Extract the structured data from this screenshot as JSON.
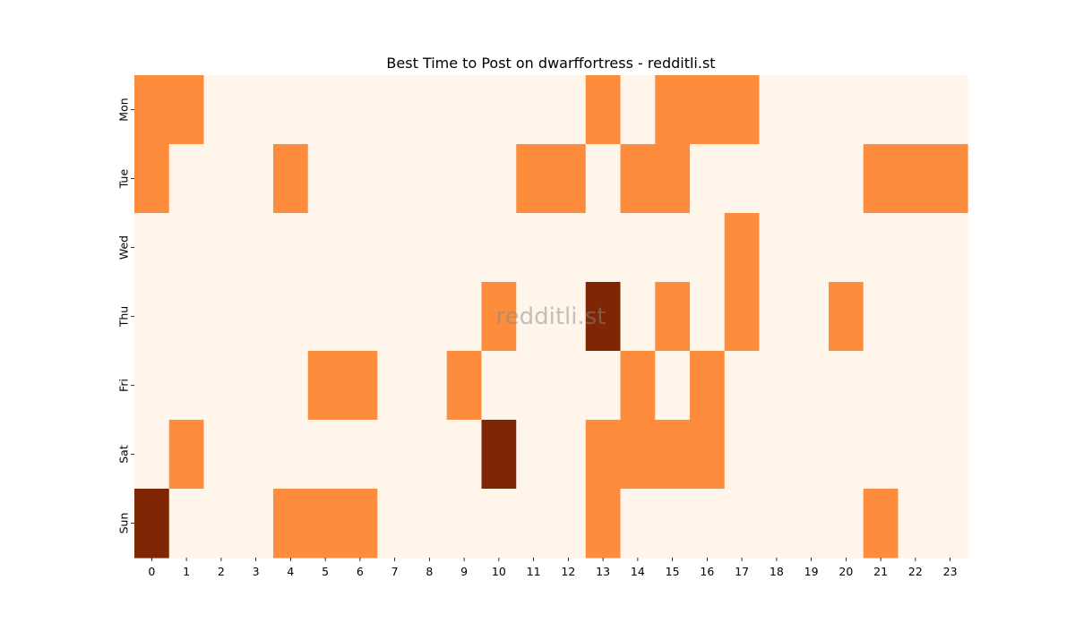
{
  "chart_data": {
    "type": "heatmap",
    "title": "Best Time to Post on dwarffortress - redditli.st",
    "watermark": "redditli.st",
    "x_labels": [
      "0",
      "1",
      "2",
      "3",
      "4",
      "5",
      "6",
      "7",
      "8",
      "9",
      "10",
      "11",
      "12",
      "13",
      "14",
      "15",
      "16",
      "17",
      "18",
      "19",
      "20",
      "21",
      "22",
      "23"
    ],
    "y_labels": [
      "Mon",
      "Tue",
      "Wed",
      "Thu",
      "Fri",
      "Sat",
      "Sun"
    ],
    "xlabel": "",
    "ylabel": "",
    "colorbar": false,
    "colormap": "Oranges",
    "level_colors": [
      "#fff5eb",
      "#fd8d3c",
      "#7f2704"
    ],
    "values": [
      [
        1,
        1,
        0,
        0,
        0,
        0,
        0,
        0,
        0,
        0,
        0,
        0,
        0,
        1,
        0,
        1,
        1,
        1,
        0,
        0,
        0,
        0,
        0,
        0
      ],
      [
        1,
        0,
        0,
        0,
        1,
        0,
        0,
        0,
        0,
        0,
        0,
        1,
        1,
        0,
        1,
        1,
        0,
        0,
        0,
        0,
        0,
        1,
        1,
        1
      ],
      [
        0,
        0,
        0,
        0,
        0,
        0,
        0,
        0,
        0,
        0,
        0,
        0,
        0,
        0,
        0,
        0,
        0,
        1,
        0,
        0,
        0,
        0,
        0,
        0
      ],
      [
        0,
        0,
        0,
        0,
        0,
        0,
        0,
        0,
        0,
        0,
        1,
        0,
        0,
        2,
        0,
        1,
        0,
        1,
        0,
        0,
        1,
        0,
        0,
        0
      ],
      [
        0,
        0,
        0,
        0,
        0,
        1,
        1,
        0,
        0,
        1,
        0,
        0,
        0,
        0,
        1,
        0,
        1,
        0,
        0,
        0,
        0,
        0,
        0,
        0
      ],
      [
        0,
        1,
        0,
        0,
        0,
        0,
        0,
        0,
        0,
        0,
        2,
        0,
        0,
        1,
        1,
        1,
        1,
        0,
        0,
        0,
        0,
        0,
        0,
        0
      ],
      [
        2,
        0,
        0,
        0,
        1,
        1,
        1,
        0,
        0,
        0,
        0,
        0,
        0,
        1,
        0,
        0,
        0,
        0,
        0,
        0,
        0,
        1,
        0,
        0
      ]
    ]
  }
}
